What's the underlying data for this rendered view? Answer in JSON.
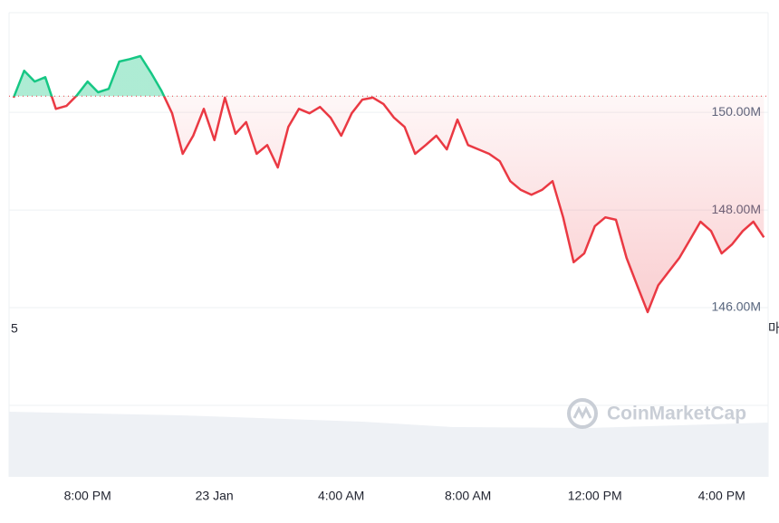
{
  "chart_data": {
    "type": "line",
    "categories": [
      "",
      null,
      null,
      null,
      null,
      null,
      null,
      "8:00 PM",
      null,
      null,
      null,
      null,
      null,
      null,
      null,
      null,
      null,
      null,
      null,
      "23 Jan",
      null,
      null,
      null,
      null,
      null,
      null,
      null,
      null,
      null,
      null,
      null,
      "4:00 AM",
      null,
      null,
      null,
      null,
      null,
      null,
      null,
      null,
      null,
      null,
      null,
      "8:00 AM",
      null,
      null,
      null,
      null,
      null,
      null,
      null,
      null,
      null,
      null,
      null,
      "12:00 PM",
      null,
      null,
      null,
      null,
      null,
      null,
      null,
      null,
      null,
      null,
      null,
      "4:00 PM",
      null,
      null,
      null,
      null
    ],
    "values": [
      150.3,
      150.85,
      150.63,
      150.72,
      150.07,
      150.13,
      150.35,
      150.63,
      150.41,
      150.48,
      151.04,
      151.09,
      151.15,
      150.81,
      150.44,
      149.98,
      149.15,
      149.52,
      150.07,
      149.43,
      150.3,
      149.56,
      149.8,
      149.15,
      149.33,
      148.87,
      149.7,
      150.07,
      149.98,
      150.11,
      149.89,
      149.52,
      149.98,
      150.26,
      150.3,
      150.17,
      149.89,
      149.7,
      149.15,
      149.33,
      149.52,
      149.24,
      149.85,
      149.33,
      149.24,
      149.15,
      149.0,
      148.59,
      148.41,
      148.31,
      148.41,
      148.59,
      147.85,
      146.93,
      147.11,
      147.67,
      147.85,
      147.8,
      147.02,
      146.46,
      145.91,
      146.46,
      146.74,
      147.02,
      147.39,
      147.76,
      147.57,
      147.11,
      147.3,
      147.57,
      147.76,
      147.44
    ],
    "baseline": 150.33,
    "colors": {
      "above": "#16c784",
      "below": "#ea3943"
    },
    "ylim": [
      144,
      152.04
    ],
    "yticks": [
      {
        "value": 146,
        "label": "146.00M"
      },
      {
        "value": 148,
        "label": "148.00M"
      },
      {
        "value": 150,
        "label": "150.00M"
      }
    ],
    "grid": true,
    "annotations": [
      "5",
      "마"
    ],
    "watermark": "CoinMarketCap"
  }
}
